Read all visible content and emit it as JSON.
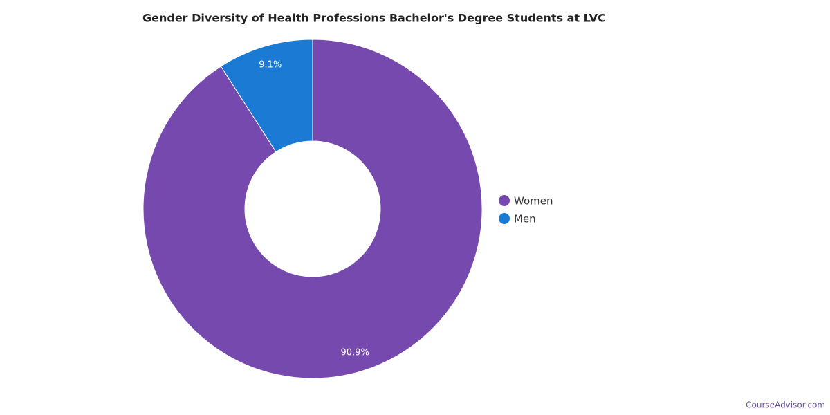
{
  "chart_data": {
    "type": "pie",
    "title": "Gender Diversity of Health Professions Bachelor's Degree Students at LVC",
    "categories": [
      "Women",
      "Men"
    ],
    "values": [
      90.9,
      9.1
    ],
    "value_labels": [
      "90.9%",
      "9.1%"
    ],
    "colors": [
      "#7549ae",
      "#1a7ad4"
    ],
    "source": "CourseAdvisor.com"
  }
}
